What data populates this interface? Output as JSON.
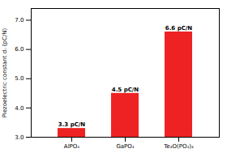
{
  "chart_data": {
    "type": "bar",
    "categories": [
      "AlPO₄",
      "GaPO₄",
      "Te₂O(PO₄)₂"
    ],
    "values": [
      3.3,
      4.5,
      6.6
    ],
    "value_labels": [
      "3.3 pC/N",
      "4.5 pC/N",
      "6.6 pC/N"
    ],
    "data_labels": true,
    "color": "#ee2222",
    "ylabel": "Piezoelectric constant dᵢᵢ (pC/N)",
    "ylim": [
      3.0,
      7.4
    ],
    "yticks": [
      3,
      4,
      5,
      6,
      7
    ]
  }
}
